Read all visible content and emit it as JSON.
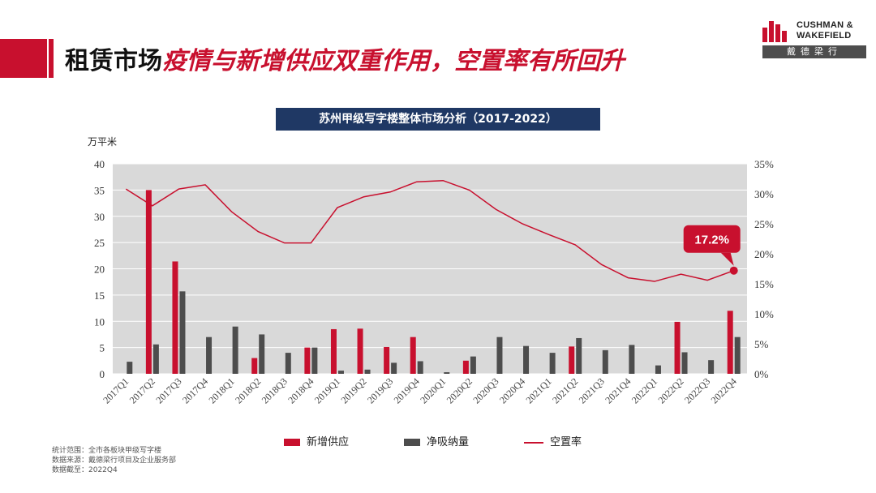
{
  "header": {
    "title_black": "租赁市场",
    "title_red": "疫情与新增供应双重作用，空置率有所回升"
  },
  "logo": {
    "line1": "CUSHMAN &",
    "line2": "WAKEFIELD",
    "cn": "戴德梁行"
  },
  "chart_title": "苏州甲级写字楼整体市场分析（2017-2022）",
  "unit_label": "万平米",
  "footnotes": [
    "统计范围：全市各板块甲级写字楼",
    "数据来源：戴德梁行项目及企业服务部",
    "数据截至：2022Q4"
  ],
  "chart_data": {
    "type": "bar",
    "title": "苏州甲级写字楼整体市场分析（2017-2022）",
    "ylabel": "万平米",
    "categories": [
      "2017Q1",
      "2017Q2",
      "2017Q3",
      "2017Q4",
      "2018Q1",
      "2018Q2",
      "2018Q3",
      "2018Q4",
      "2019Q1",
      "2019Q2",
      "2019Q3",
      "2019Q4",
      "2020Q1",
      "2020Q2",
      "2020Q3",
      "2020Q4",
      "2021Q1",
      "2021Q2",
      "2021Q3",
      "2021Q4",
      "2022Q1",
      "2022Q2",
      "2022Q3",
      "2022Q4"
    ],
    "ylim": [
      0,
      40
    ],
    "yticks": [
      "0",
      "5",
      "10",
      "15",
      "20",
      "25",
      "30",
      "35",
      "40"
    ],
    "y2lim": [
      0,
      35
    ],
    "y2ticks": [
      "0%",
      "5%",
      "10%",
      "15%",
      "20%",
      "25%",
      "30%",
      "35%"
    ],
    "grid": true,
    "legend_position": "bottom",
    "series": [
      {
        "name": "新增供应",
        "type": "bar",
        "axis": "left",
        "color": "#c8102e",
        "values": [
          0,
          35,
          21.4,
          0,
          0,
          3,
          0,
          5,
          8.5,
          8.6,
          5.1,
          7,
          0,
          2.5,
          0,
          0,
          0,
          5.2,
          0,
          0,
          0,
          9.9,
          0,
          12
        ]
      },
      {
        "name": "净吸纳量",
        "type": "bar",
        "axis": "left",
        "color": "#4d4d4d",
        "values": [
          2.3,
          5.6,
          15.7,
          7,
          9,
          7.5,
          4,
          5,
          0.6,
          0.8,
          2.1,
          2.4,
          0.3,
          3.3,
          7,
          5.3,
          4,
          6.8,
          4.5,
          5.5,
          1.6,
          4.1,
          2.6,
          7
        ]
      },
      {
        "name": "空置率",
        "type": "line",
        "axis": "right",
        "color": "#c8102e",
        "values": [
          30.8,
          28,
          30.8,
          31.5,
          27,
          23.7,
          21.8,
          21.8,
          27.7,
          29.5,
          30.3,
          32.0,
          32.2,
          30.6,
          27.4,
          25,
          23.2,
          21.5,
          18.2,
          16,
          15.4,
          16.6,
          15.6,
          17.2
        ]
      }
    ],
    "annotation": {
      "text": "17.2%",
      "category": "2022Q4",
      "value": 17.2
    }
  }
}
